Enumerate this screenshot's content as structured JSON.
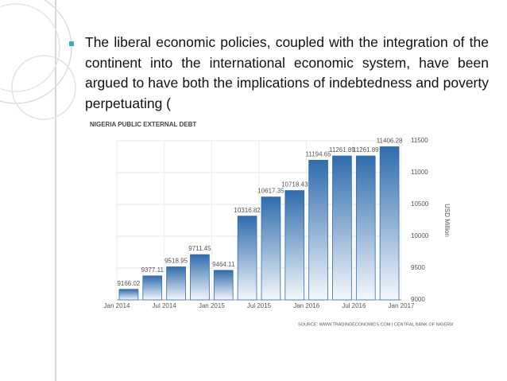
{
  "bullet": "The liberal economic policies, coupled with the integration of the continent into the international economic system, have been argued to have both the implications of indebtedness and poverty perpetuating (",
  "chart_data": {
    "type": "bar",
    "title": "NIGERIA PUBLIC EXTERNAL DEBT",
    "x_labels": [
      "Jan 2014",
      "Jul 2014",
      "Jan 2015",
      "Jul 2015",
      "Jan 2016",
      "Jul 2016",
      "Jan 2017"
    ],
    "values": [
      9166.02,
      9377.11,
      9518.95,
      9711.45,
      9464.11,
      10316.82,
      10617.35,
      10718.43,
      11194.65,
      11261.89,
      11261.89,
      11406.28
    ],
    "ylim": [
      9000,
      11500
    ],
    "yticks": [
      9000,
      9500,
      10000,
      10500,
      11000,
      11500
    ],
    "y_label": "USD Million",
    "source": "SOURCE: WWW.TRADINGECONOMICS.COM | CENTRAL BANK OF NIGERIA (CBN)",
    "color": "#2f6cad",
    "grid": true
  }
}
